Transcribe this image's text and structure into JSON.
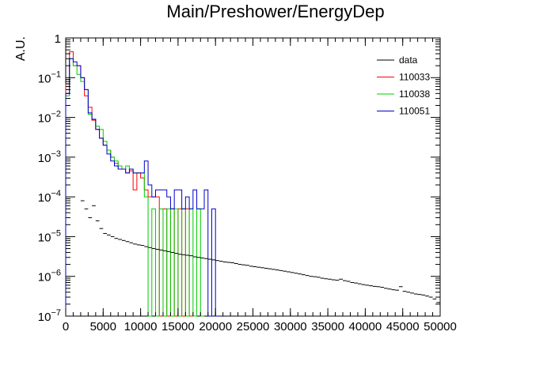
{
  "chart_data": {
    "type": "line",
    "title": "Main/Preshower/EnergyDep",
    "xlabel": "",
    "ylabel": "A.U.",
    "xlim": [
      0,
      50000
    ],
    "ylim": [
      1e-07,
      1
    ],
    "y_scale": "log",
    "x_ticks": [
      0,
      5000,
      10000,
      15000,
      20000,
      25000,
      30000,
      35000,
      40000,
      45000,
      50000
    ],
    "x_tick_labels": [
      "0",
      "5000",
      "10000",
      "15000",
      "20000",
      "25000",
      "30000",
      "35000",
      "40000",
      "45000",
      "50000"
    ],
    "y_ticks": [
      1e-07,
      1e-06,
      1e-05,
      0.0001,
      0.001,
      0.01,
      0.1,
      1
    ],
    "y_tick_labels": [
      {
        "base": "10",
        "exp": "−7"
      },
      {
        "base": "10",
        "exp": "−6"
      },
      {
        "base": "10",
        "exp": "−5"
      },
      {
        "base": "10",
        "exp": "−4"
      },
      {
        "base": "10",
        "exp": "−3"
      },
      {
        "base": "10",
        "exp": "−2"
      },
      {
        "base": "10",
        "exp": "−1"
      },
      {
        "base": "1",
        "exp": ""
      }
    ],
    "grid": false,
    "legend_position": "top-right",
    "legend": [
      "data",
      "110033",
      "110038",
      "110051"
    ],
    "bin_width": 500,
    "series": [
      {
        "name": "data",
        "color": "#000000",
        "style": "error-points",
        "x": [
          2250,
          2750,
          3250,
          3750,
          4250,
          4750,
          5250,
          5750,
          6250,
          6750,
          7250,
          7750,
          8250,
          8750,
          9250,
          9750,
          10250,
          10750,
          11250,
          11750,
          12250,
          12750,
          13250,
          13750,
          14250,
          14750,
          15250,
          15750,
          16250,
          16750,
          17250,
          17750,
          18250,
          18750,
          19250,
          19750,
          20250,
          20750,
          21250,
          21750,
          22250,
          22750,
          23250,
          23750,
          24250,
          24750,
          25250,
          25750,
          26250,
          26750,
          27250,
          27750,
          28250,
          28750,
          29250,
          29750,
          30250,
          30750,
          31250,
          31750,
          32250,
          32750,
          33250,
          33750,
          34250,
          34750,
          35250,
          35750,
          36250,
          36750,
          37250,
          37750,
          38250,
          38750,
          39250,
          39750,
          40250,
          40750,
          41250,
          41750,
          42250,
          42750,
          43250,
          43750,
          44250,
          44750,
          45250,
          45750,
          46250,
          46750,
          47250,
          47750,
          48250,
          48750,
          49250,
          49750
        ],
        "y": [
          8e-05,
          5e-05,
          3e-05,
          6e-05,
          2.5e-05,
          1.6e-05,
          1.2e-05,
          1.1e-05,
          1e-05,
          9e-06,
          8.5e-06,
          8e-06,
          7.5e-06,
          7e-06,
          6.5e-06,
          6.2e-06,
          6e-06,
          5.6e-06,
          5.3e-06,
          5e-06,
          4.8e-06,
          4.6e-06,
          4.4e-06,
          4.2e-06,
          4e-06,
          3.8e-06,
          3.6e-06,
          3.5e-06,
          3.4e-06,
          3.3e-06,
          3.1e-06,
          3e-06,
          2.9e-06,
          2.8e-06,
          2.7e-06,
          2.6e-06,
          2.5e-06,
          2.4e-06,
          2.3e-06,
          2.25e-06,
          2.2e-06,
          2.1e-06,
          2e-06,
          1.95e-06,
          1.9e-06,
          1.8e-06,
          1.75e-06,
          1.7e-06,
          1.65e-06,
          1.6e-06,
          1.55e-06,
          1.5e-06,
          1.45e-06,
          1.4e-06,
          1.35e-06,
          1.3e-06,
          1.25e-06,
          1.2e-06,
          1.15e-06,
          1.1e-06,
          1.05e-06,
          1e-06,
          9.8e-07,
          9.5e-07,
          9e-07,
          8.7e-07,
          8.5e-07,
          8.2e-07,
          8e-07,
          8.5e-07,
          7.8e-07,
          7.5e-07,
          7e-07,
          6.8e-07,
          6.5e-07,
          6.2e-07,
          6e-07,
          5.8e-07,
          5.6e-07,
          5.5e-07,
          5.3e-07,
          5e-07,
          4.8e-07,
          4.6e-07,
          4.5e-07,
          5.5e-07,
          4.2e-07,
          4e-07,
          3.8e-07,
          3.6e-07,
          3.5e-07,
          3.4e-07,
          3.2e-07,
          3e-07,
          2.7e-07,
          2.2e-07
        ]
      },
      {
        "name": "110033",
        "color": "#ff0000",
        "style": "step",
        "x": [
          250,
          750,
          1250,
          1750,
          2250,
          2750,
          3250,
          3750,
          4250,
          4750,
          5250,
          5750,
          6250,
          6750,
          7250,
          7750,
          8250,
          8750,
          9250,
          9750,
          10250,
          10750,
          11250,
          11750,
          12250,
          12750,
          13250,
          13750,
          14250,
          14750,
          15250,
          15750,
          16250,
          16750
        ],
        "y": [
          0.07,
          0.45,
          0.2,
          0.2,
          0.1,
          0.035,
          0.018,
          0.0085,
          0.005,
          0.003,
          0.002,
          0.0015,
          0.001,
          0.0007,
          0.0005,
          0.0005,
          0.0004,
          0.00045,
          0.00015,
          0.0004,
          0.0003,
          0.00015,
          0.0001,
          0.0001,
          0.0001,
          1e-08,
          5e-05,
          1e-08,
          5e-05,
          1e-08,
          5e-05,
          1e-08,
          5e-05,
          1e-08
        ]
      },
      {
        "name": "110038",
        "color": "#00cc00",
        "style": "step",
        "x": [
          250,
          750,
          1250,
          1750,
          2250,
          2750,
          3250,
          3750,
          4250,
          4750,
          5250,
          5750,
          6250,
          6750,
          7250,
          7750,
          8250,
          8750,
          9250,
          9750,
          10250,
          10750,
          11250,
          11750,
          12250,
          12750,
          13250,
          13750,
          14250,
          14750,
          15250,
          15750,
          16250,
          16750,
          17250,
          17750,
          18250
        ],
        "y": [
          0.035,
          0.3,
          0.2,
          0.12,
          0.08,
          0.05,
          0.012,
          0.009,
          0.006,
          0.005,
          0.0025,
          0.0015,
          0.001,
          0.0008,
          0.0006,
          0.0005,
          0.0006,
          0.0005,
          0.0004,
          0.0004,
          0.0004,
          0.0001,
          1e-08,
          5e-05,
          1e-08,
          5e-05,
          1e-08,
          5e-05,
          1e-08,
          5e-05,
          1e-08,
          5e-05,
          1e-08,
          5e-05,
          1e-08,
          5e-05,
          1e-08
        ]
      },
      {
        "name": "110051",
        "color": "#0000cc",
        "style": "step",
        "x": [
          250,
          750,
          1250,
          1750,
          2250,
          2750,
          3250,
          3750,
          4250,
          4750,
          5250,
          5750,
          6250,
          6750,
          7250,
          7750,
          8250,
          8750,
          9250,
          9750,
          10250,
          10750,
          11250,
          11750,
          12250,
          12750,
          13250,
          13750,
          14250,
          14750,
          15250,
          15750,
          16250,
          16750,
          17250,
          17750,
          18250,
          18750,
          19250,
          19750,
          20250
        ],
        "y": [
          0.04,
          0.3,
          0.25,
          0.2,
          0.1,
          0.05,
          0.013,
          0.009,
          0.005,
          0.003,
          0.002,
          0.0012,
          0.0008,
          0.0006,
          0.0005,
          0.0005,
          0.0004,
          0.0005,
          0.0004,
          0.0004,
          0.0004,
          0.0008,
          0.0002,
          0.0001,
          0.00015,
          0.00015,
          0.00015,
          0.0001,
          5e-05,
          0.00015,
          0.00015,
          5e-05,
          0.0001,
          5e-05,
          0.00015,
          5e-05,
          5e-05,
          0.00015,
          1e-08,
          5e-05,
          1e-08
        ]
      }
    ]
  }
}
